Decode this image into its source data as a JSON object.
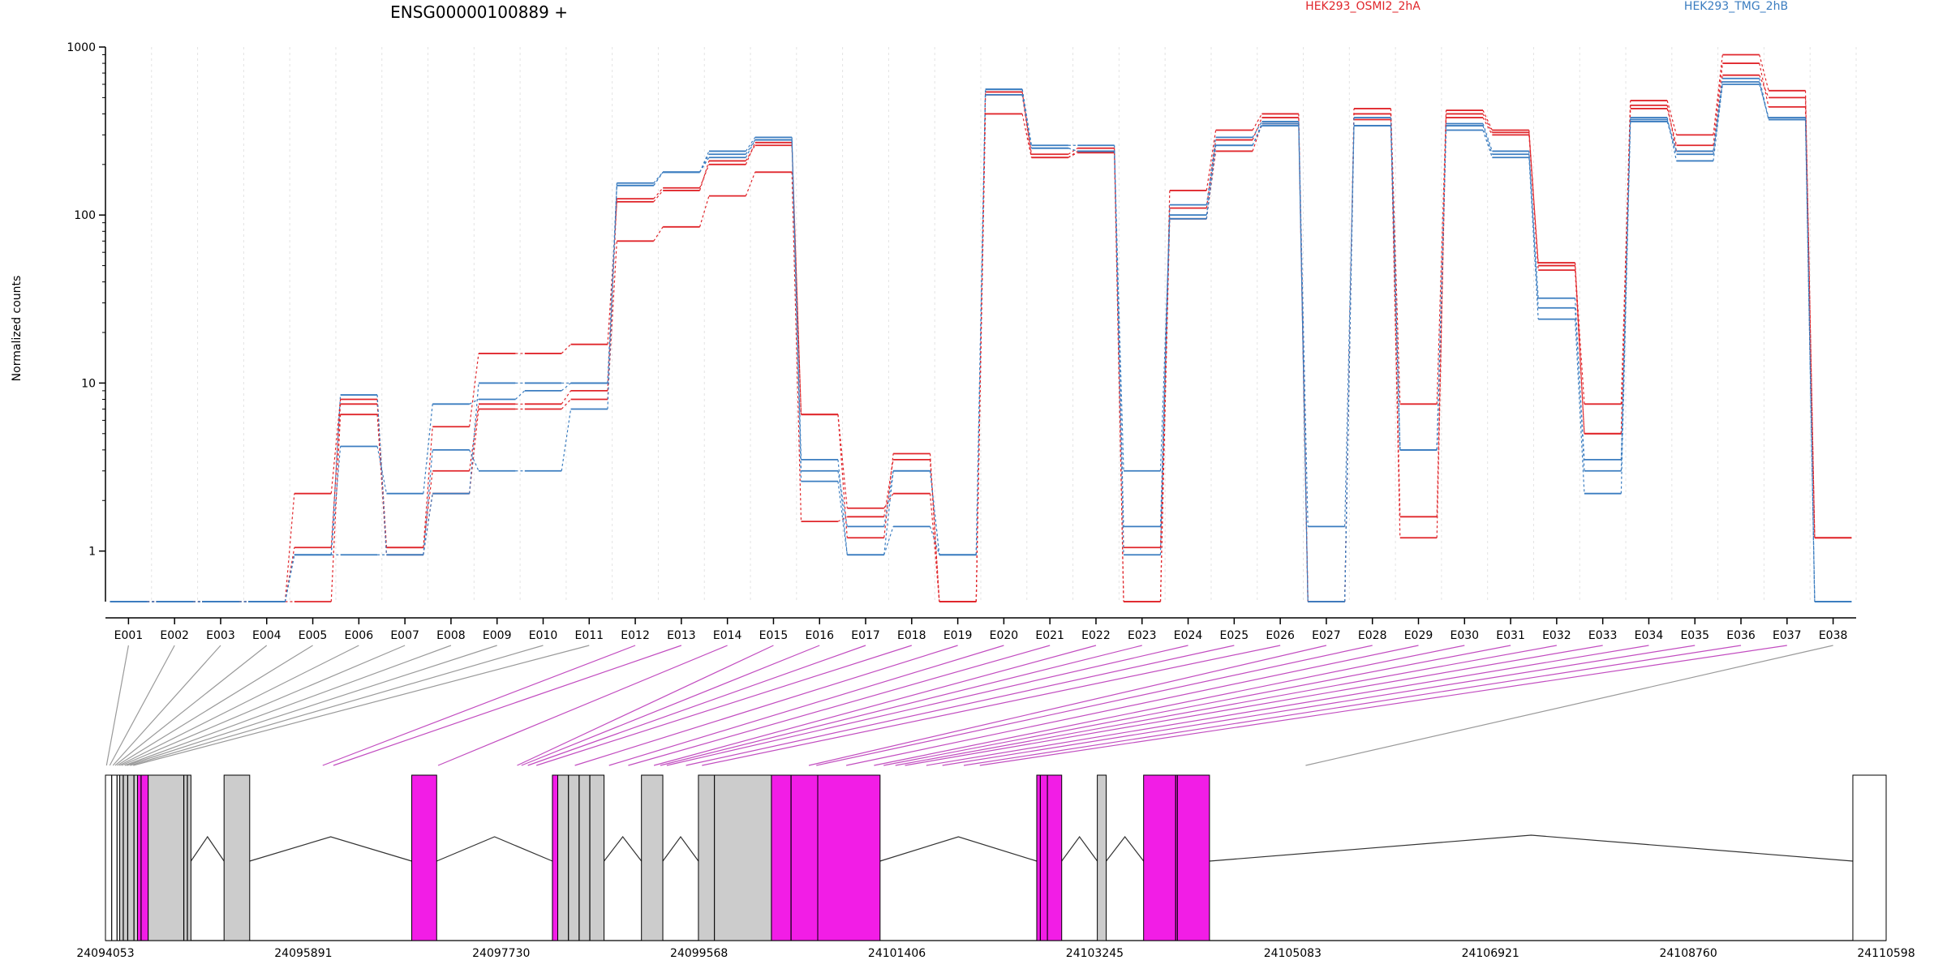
{
  "chart_data": {
    "type": "line",
    "title": "ENSG00000100889 +",
    "xlabel": "",
    "ylabel": "Normalized counts",
    "y_scale": "log",
    "ylim": [
      0.5,
      1000
    ],
    "y_ticks": [
      {
        "value": 1,
        "label": "1"
      },
      {
        "value": 10,
        "label": "10"
      },
      {
        "value": 100,
        "label": "100"
      },
      {
        "value": 1000,
        "label": "1000"
      }
    ],
    "grid": "vertical dotted lines at exon boundaries",
    "legend_position": "top",
    "categories": [
      "E001",
      "E002",
      "E003",
      "E004",
      "E005",
      "E006",
      "E007",
      "E008",
      "E009",
      "E010",
      "E011",
      "E012",
      "E013",
      "E014",
      "E015",
      "E016",
      "E017",
      "E018",
      "E019",
      "E020",
      "E021",
      "E022",
      "E023",
      "E024",
      "E025",
      "E026",
      "E027",
      "E028",
      "E029",
      "E030",
      "E031",
      "E032",
      "E033",
      "E034",
      "E035",
      "E036",
      "E037",
      "E038"
    ],
    "series": [
      {
        "name": "HEK293_OSMI2_2hA",
        "color": "#e0262b",
        "values": [
          0.5,
          0.5,
          0.5,
          0.5,
          2.2,
          8.0,
          1.05,
          3.0,
          7.5,
          7.5,
          9.0,
          125,
          145,
          200,
          270,
          6.5,
          1.8,
          2.2,
          0.5,
          400,
          220,
          240,
          1.05,
          110,
          280,
          380,
          0.5,
          430,
          7.5,
          420,
          320,
          50,
          7.5,
          480,
          300,
          900,
          550,
          1.2
        ]
      },
      {
        "name": "",
        "color": "#e0262b",
        "values": [
          0.5,
          0.5,
          0.5,
          0.5,
          0.5,
          6.5,
          0.95,
          2.2,
          7.0,
          7.0,
          8.0,
          70,
          85,
          130,
          180,
          1.5,
          1.6,
          3.5,
          0.5,
          520,
          220,
          235,
          0.5,
          95,
          240,
          350,
          0.5,
          400,
          1.6,
          380,
          300,
          47,
          5.0,
          430,
          260,
          800,
          440,
          1.2
        ]
      },
      {
        "name": "",
        "color": "#e0262b",
        "values": [
          0.5,
          0.5,
          0.5,
          0.5,
          1.05,
          7.5,
          1.05,
          5.5,
          15,
          15,
          17,
          120,
          140,
          210,
          260,
          6.5,
          1.2,
          3.8,
          0.5,
          540,
          230,
          250,
          0.5,
          140,
          320,
          400,
          0.5,
          370,
          1.2,
          400,
          310,
          52,
          5.0,
          450,
          240,
          680,
          500,
          1.2
        ]
      },
      {
        "name": "HEK293_TMG_2hB",
        "color": "#3b7dc0",
        "values": [
          0.5,
          0.5,
          0.5,
          0.5,
          0.95,
          4.2,
          2.2,
          7.5,
          8.0,
          9.0,
          10,
          150,
          180,
          230,
          280,
          3.0,
          1.4,
          3.0,
          0.95,
          560,
          260,
          260,
          1.4,
          115,
          290,
          360,
          1.4,
          340,
          4.0,
          340,
          230,
          32,
          3.0,
          380,
          210,
          600,
          380,
          0.5
        ]
      },
      {
        "name": "",
        "color": "#3b7dc0",
        "values": [
          0.5,
          0.5,
          0.5,
          0.5,
          0.95,
          8.5,
          0.95,
          4.0,
          3.0,
          3.0,
          7.0,
          155,
          180,
          220,
          280,
          2.6,
          0.95,
          1.4,
          0.95,
          520,
          250,
          240,
          0.95,
          100,
          260,
          340,
          0.5,
          340,
          4.0,
          320,
          220,
          24,
          2.2,
          360,
          230,
          620,
          370,
          0.5
        ]
      },
      {
        "name": "",
        "color": "#3b7dc0",
        "values": [
          0.5,
          0.5,
          0.5,
          0.5,
          0.95,
          0.95,
          0.95,
          2.2,
          10,
          10,
          10,
          150,
          180,
          240,
          290,
          3.5,
          0.95,
          3.0,
          0.95,
          560,
          250,
          240,
          3.0,
          95,
          260,
          350,
          0.5,
          380,
          4.0,
          350,
          240,
          28,
          3.5,
          370,
          240,
          650,
          370,
          0.5
        ]
      }
    ],
    "exon_model": {
      "start_label": "24094053",
      "end_label": "24110598",
      "axis_labels": [
        "24094053",
        "24095891",
        "24097730",
        "24099568",
        "24101406",
        "24103245",
        "24105083",
        "24106921",
        "24108760",
        "24110598"
      ],
      "highlight_color": "#f21de6",
      "exon_color": "#cccccc",
      "highlighted_exons": [
        "E012",
        "E013",
        "E014",
        "E015",
        "E016",
        "E017",
        "E018",
        "E019",
        "E020",
        "E021",
        "E022",
        "E023",
        "E024",
        "E025",
        "E026",
        "E027",
        "E028",
        "E029",
        "E030",
        "E031",
        "E032",
        "E033",
        "E034",
        "E035",
        "E036",
        "E037"
      ]
    }
  }
}
